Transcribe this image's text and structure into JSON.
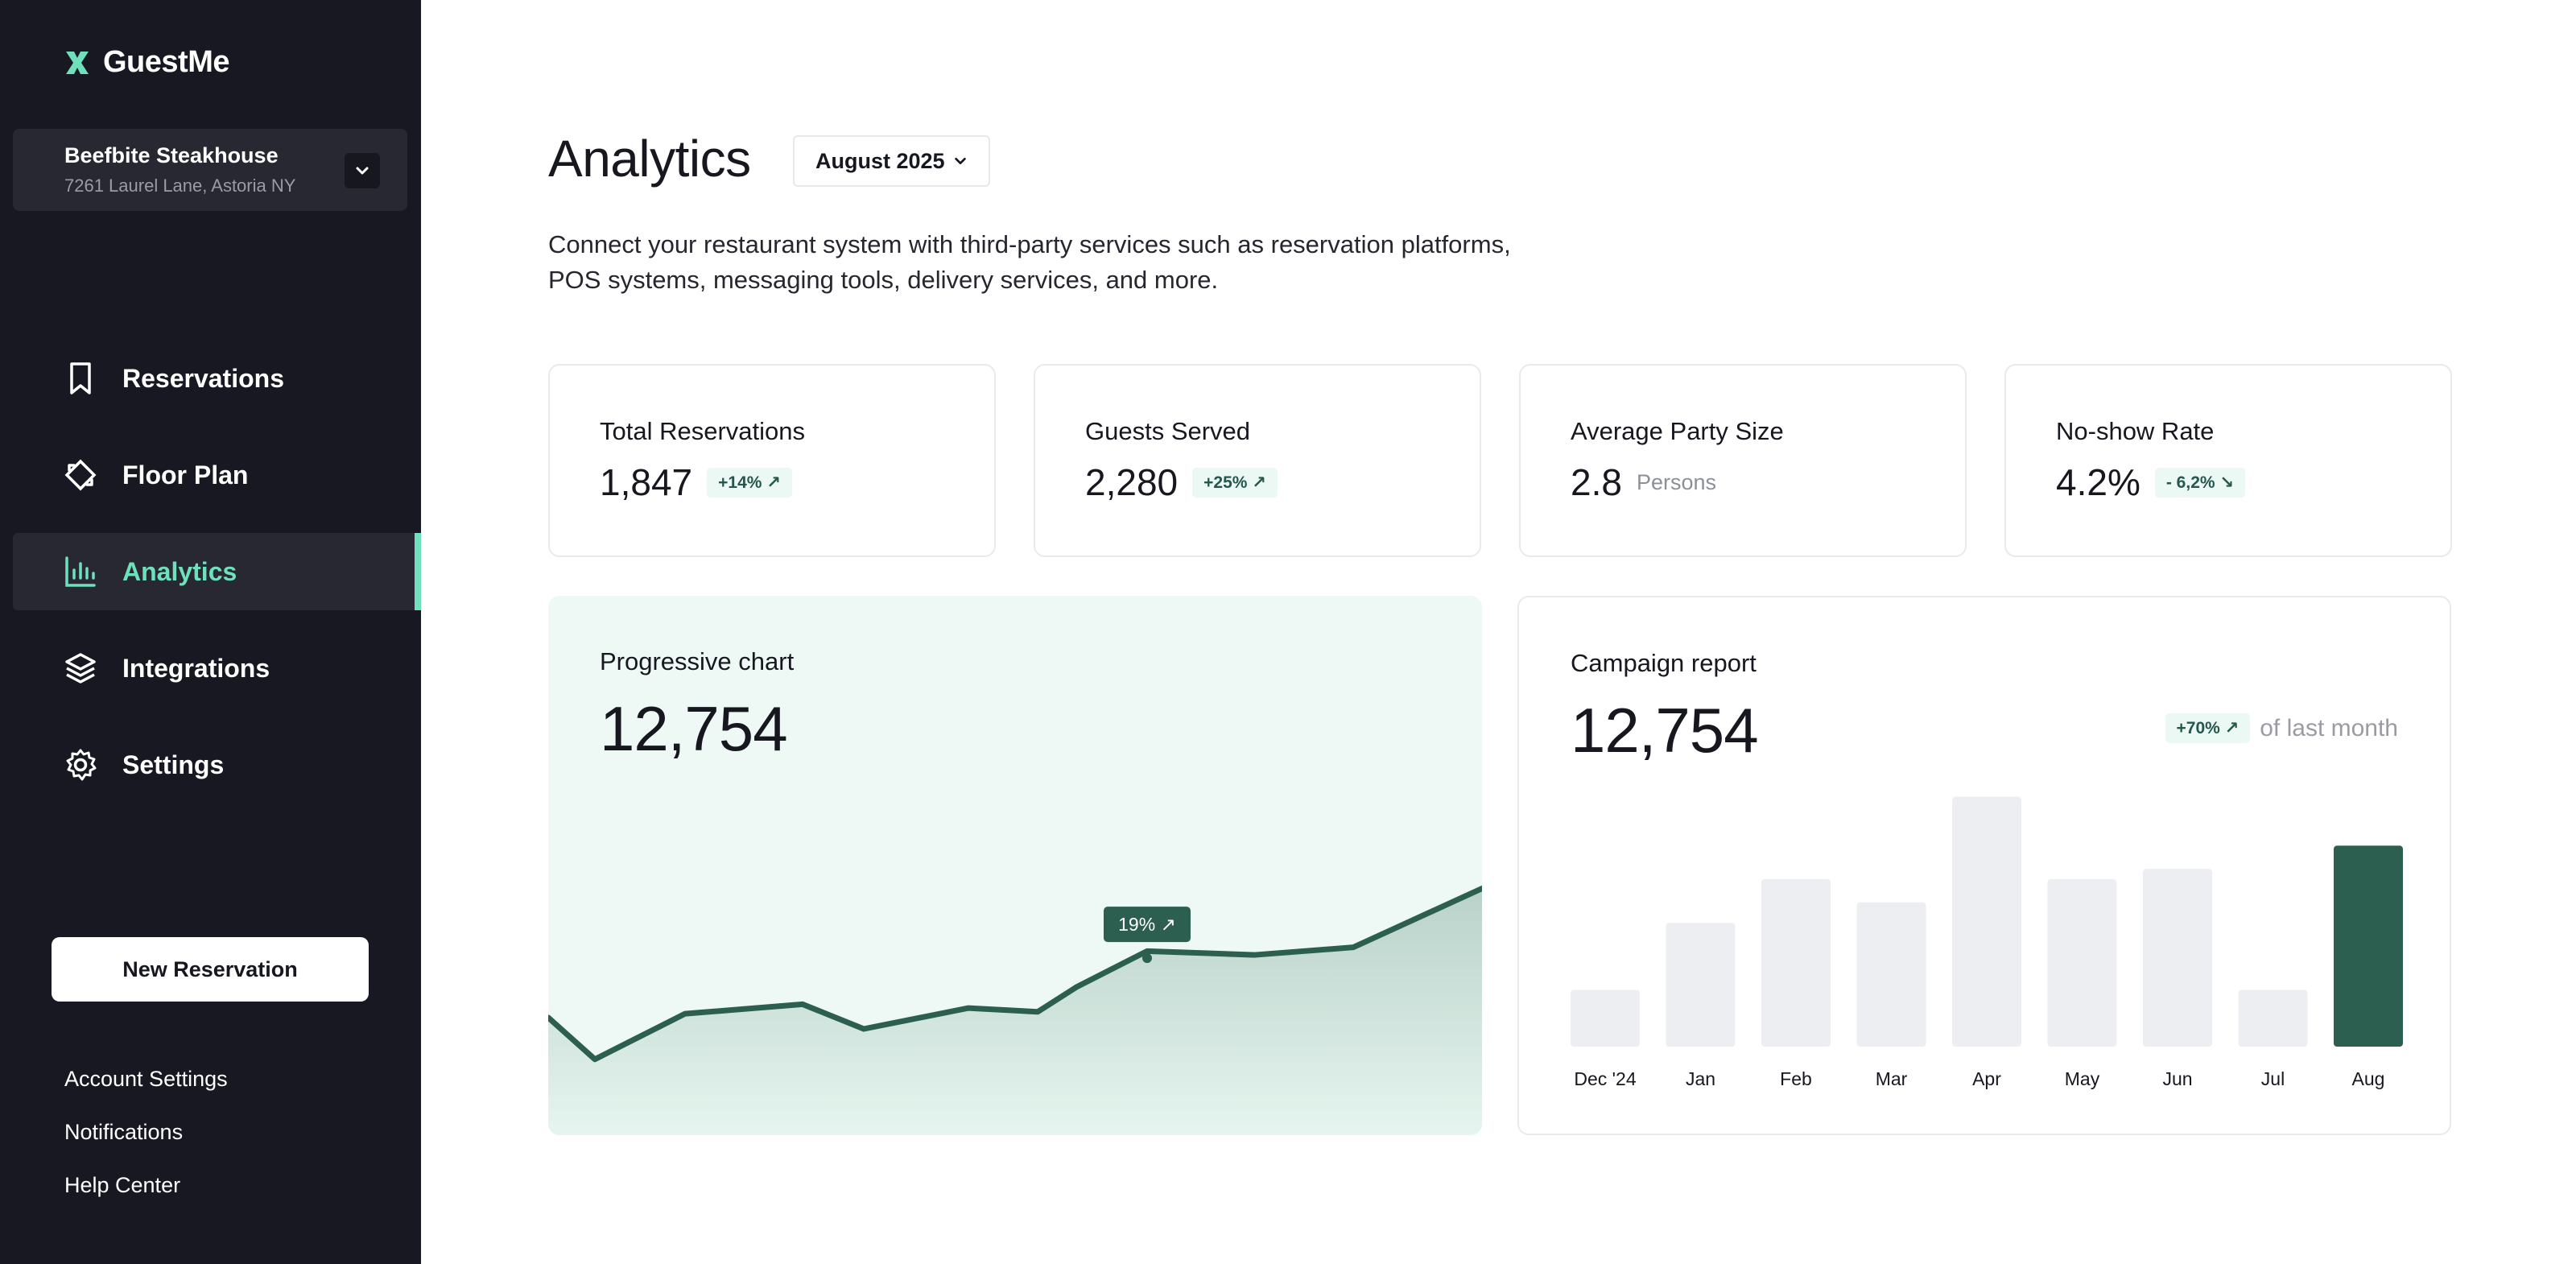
{
  "brand": {
    "name": "GuestMe",
    "logo_icon": "x-mark-icon",
    "accent": "#6fe0bc",
    "dark_green": "#2c5f50"
  },
  "venue": {
    "name": "Beefbite Steakhouse",
    "address": "7261 Laurel Lane, Astoria NY"
  },
  "nav": [
    {
      "label": "Reservations",
      "icon": "bookmark-icon",
      "active": false
    },
    {
      "label": "Floor Plan",
      "icon": "floor-plan-icon",
      "active": false
    },
    {
      "label": "Analytics",
      "icon": "bar-chart-icon",
      "active": true
    },
    {
      "label": "Integrations",
      "icon": "layers-icon",
      "active": false
    },
    {
      "label": "Settings",
      "icon": "gear-icon",
      "active": false
    }
  ],
  "new_reservation_label": "New Reservation",
  "footer_links": [
    "Account Settings",
    "Notifications",
    "Help Center"
  ],
  "page": {
    "title": "Analytics",
    "month": "August 2025",
    "description_line1": "Connect your restaurant system with third-party services such as reservation platforms,",
    "description_line2": "POS systems, messaging tools, delivery services, and more."
  },
  "stats": [
    {
      "label": "Total Reservations",
      "value": "1,847",
      "badge": "+14% ↗"
    },
    {
      "label": "Guests Served",
      "value": "2,280",
      "badge": "+25% ↗"
    },
    {
      "label": "Average Party Size",
      "value": "2.8",
      "unit": "Persons"
    },
    {
      "label": "No-show Rate",
      "value": "4.2%",
      "badge": "- 6,2% ↘"
    }
  ],
  "progressive": {
    "title": "Progressive chart",
    "value": "12,754",
    "tooltip": "19% ↗"
  },
  "campaign": {
    "title": "Campaign report",
    "value": "12,754",
    "change_badge": "+70% ↗",
    "change_text": "of last month"
  },
  "chart_data": [
    {
      "type": "area",
      "title": "Progressive chart",
      "y": [
        62,
        40,
        64,
        69,
        56,
        67,
        65,
        78,
        97,
        95,
        99,
        130
      ],
      "ylim": [
        0,
        140
      ],
      "annotation": {
        "index": 7,
        "text": "19% ↗"
      },
      "grid": false
    },
    {
      "type": "bar",
      "title": "Campaign report",
      "categories": [
        "Dec '24",
        "Jan",
        "Feb",
        "Mar",
        "Apr",
        "May",
        "Jun",
        "Jul",
        "Aug"
      ],
      "values": [
        22,
        48,
        65,
        56,
        97,
        65,
        69,
        22,
        78
      ],
      "highlight_index": 8,
      "ylim": [
        0,
        100
      ],
      "grid": false
    }
  ]
}
